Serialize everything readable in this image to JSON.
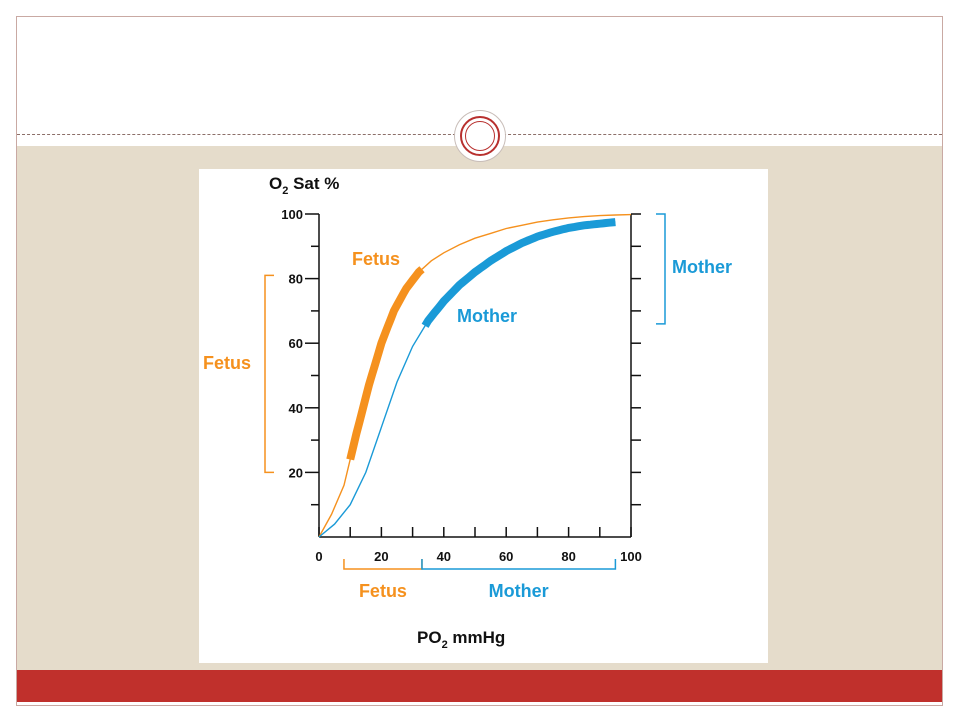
{
  "colors": {
    "fetus": "#f5911e",
    "mother": "#1a9ad7",
    "axis": "#111111",
    "accent_red": "#c0302c",
    "band": "#e5dccb"
  },
  "chart_data": {
    "type": "line",
    "title": "O2 Sat %",
    "ylabel_main": "O",
    "ylabel_sub": "2",
    "ylabel_rest": " Sat %",
    "xlabel_main": "PO",
    "xlabel_sub": "2",
    "xlabel_rest": " mmHg",
    "xlim": [
      0,
      100
    ],
    "ylim": [
      0,
      100
    ],
    "x_ticks": [
      "0",
      "20",
      "40",
      "60",
      "80",
      "100"
    ],
    "y_ticks": [
      "20",
      "40",
      "60",
      "80",
      "100"
    ],
    "series": [
      {
        "name": "Fetus",
        "x": [
          0,
          4,
          8,
          12,
          16,
          20,
          24,
          28,
          32,
          36,
          40,
          45,
          50,
          55,
          60,
          65,
          70,
          75,
          80,
          85,
          90,
          95,
          100
        ],
        "y": [
          0,
          7,
          16,
          32,
          47,
          60,
          70,
          77,
          82,
          85.5,
          88,
          90.5,
          92.5,
          94,
          95.5,
          96.5,
          97.5,
          98.2,
          98.8,
          99.2,
          99.5,
          99.7,
          99.8
        ],
        "highlight_x": [
          10,
          33
        ],
        "color": "#f5911e"
      },
      {
        "name": "Mother",
        "x": [
          0,
          5,
          10,
          15,
          20,
          25,
          30,
          35,
          40,
          45,
          50,
          55,
          60,
          65,
          70,
          75,
          80,
          85,
          90,
          95
        ],
        "y": [
          0,
          4,
          10,
          20,
          34,
          48,
          59,
          67,
          73,
          78,
          82,
          85.5,
          88.5,
          91,
          93,
          94.5,
          95.7,
          96.5,
          97,
          97.5
        ],
        "highlight_x": [
          34,
          95
        ],
        "color": "#1a9ad7"
      }
    ],
    "annotations": {
      "fetus_curve_label": "Fetus",
      "mother_curve_label": "Mother",
      "fetus_y_range_label": "Fetus",
      "fetus_y_range": [
        20,
        81
      ],
      "mother_y_range_label": "Mother",
      "mother_y_range": [
        66,
        100
      ],
      "fetus_x_range_label": "Fetus",
      "fetus_x_range": [
        8,
        33
      ],
      "mother_x_range_label": "Mother",
      "mother_x_range": [
        33,
        95
      ]
    },
    "grid": false
  }
}
